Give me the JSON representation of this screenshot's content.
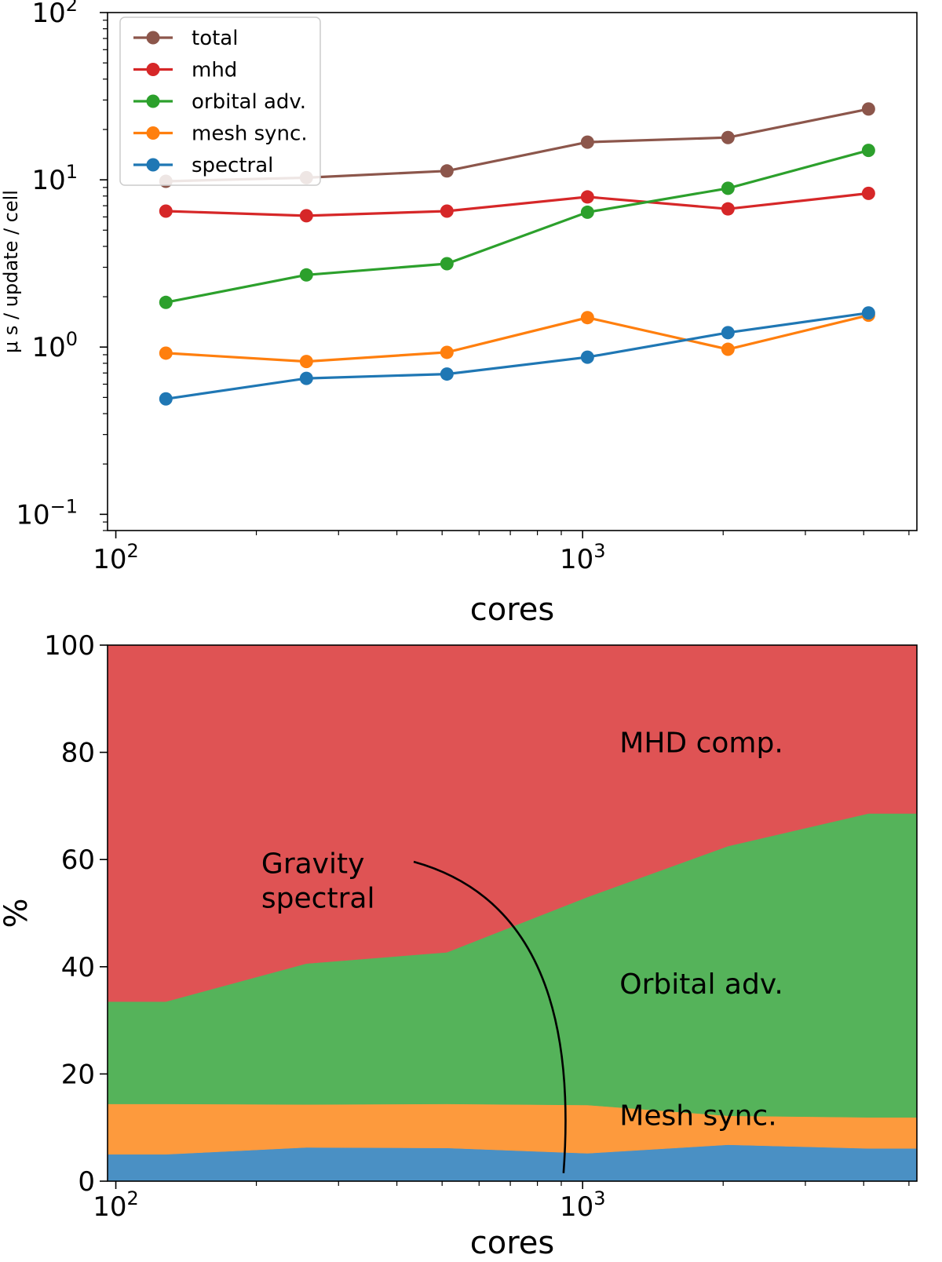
{
  "chart_data": [
    {
      "type": "line",
      "xscale": "log",
      "yscale": "log",
      "xlim": [
        96,
        5200
      ],
      "ylim": [
        0.08,
        100
      ],
      "xlabel": "cores",
      "ylabel": "μ s / update / cell",
      "x_ticks": [
        {
          "value": 100,
          "base": "10",
          "exp": "2"
        },
        {
          "value": 1000,
          "base": "10",
          "exp": "3"
        }
      ],
      "y_ticks": [
        {
          "value": 0.1,
          "base": "10",
          "exp": "−1"
        },
        {
          "value": 1,
          "base": "10",
          "exp": "0"
        },
        {
          "value": 10,
          "base": "10",
          "exp": "1"
        },
        {
          "value": 100,
          "base": "10",
          "exp": "2"
        }
      ],
      "legend_position": "upper-left",
      "x": [
        128,
        256,
        512,
        1024,
        2048,
        4096
      ],
      "series": [
        {
          "name": "total",
          "color": "#8c564b",
          "values": [
            9.8,
            10.3,
            11.3,
            16.8,
            17.9,
            26.5
          ]
        },
        {
          "name": "mhd",
          "color": "#d62728",
          "values": [
            6.5,
            6.1,
            6.5,
            7.9,
            6.7,
            8.3
          ]
        },
        {
          "name": "orbital adv.",
          "color": "#2ca02c",
          "values": [
            1.85,
            2.7,
            3.15,
            6.4,
            8.9,
            15.0
          ]
        },
        {
          "name": "mesh sync.",
          "color": "#ff7f0e",
          "values": [
            0.92,
            0.82,
            0.93,
            1.5,
            0.97,
            1.55
          ]
        },
        {
          "name": "spectral",
          "color": "#1f77b4",
          "values": [
            0.49,
            0.65,
            0.69,
            0.87,
            1.22,
            1.6
          ]
        }
      ]
    },
    {
      "type": "area",
      "stacked": true,
      "xscale": "log",
      "xlim": [
        96,
        5200
      ],
      "ylim": [
        0,
        100
      ],
      "xlabel": "cores",
      "ylabel": "%",
      "x_ticks": [
        {
          "value": 100,
          "base": "10",
          "exp": "2"
        },
        {
          "value": 1000,
          "base": "10",
          "exp": "3"
        }
      ],
      "y_ticks": [
        0,
        20,
        40,
        60,
        80,
        100
      ],
      "x": [
        96,
        128,
        256,
        512,
        1024,
        2048,
        4096,
        5200
      ],
      "series": [
        {
          "name": "Gravity spectral",
          "color": "#4a90c4",
          "values": [
            5.0,
            5.0,
            6.3,
            6.2,
            5.2,
            6.8,
            6.1,
            6.1
          ]
        },
        {
          "name": "Mesh sync.",
          "color": "#fd9a3d",
          "values": [
            9.4,
            9.4,
            8.0,
            8.2,
            9.0,
            5.4,
            5.8,
            5.8
          ]
        },
        {
          "name": "Orbital adv.",
          "color": "#55b35a",
          "values": [
            19.1,
            19.1,
            26.3,
            28.3,
            38.8,
            50.3,
            56.7,
            56.7
          ]
        },
        {
          "name": "MHD comp.",
          "color": "#df5354",
          "values": [
            66.5,
            66.5,
            59.4,
            57.3,
            47.0,
            37.5,
            31.4,
            31.4
          ]
        }
      ],
      "annotations": [
        {
          "text_lines": [
            "MHD comp."
          ],
          "x": 1200,
          "y": 80
        },
        {
          "text_lines": [
            "Gravity",
            "spectral"
          ],
          "x": 205,
          "y": 57.5,
          "arrow_to": {
            "x": 910,
            "y": 1.5
          }
        },
        {
          "text_lines": [
            "Orbital adv."
          ],
          "x": 1200,
          "y": 35
        },
        {
          "text_lines": [
            "Mesh sync."
          ],
          "x": 1200,
          "y": 10.5
        }
      ]
    }
  ]
}
